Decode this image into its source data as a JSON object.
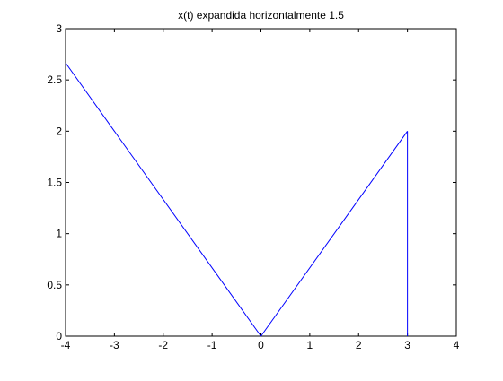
{
  "chart_data": {
    "type": "line",
    "title": "x(t) expandida horizontalmente 1.5",
    "xlabel": "",
    "ylabel": "",
    "xlim": [
      -4,
      4
    ],
    "ylim": [
      0,
      3
    ],
    "x_ticks": [
      -4,
      -3,
      -2,
      -1,
      0,
      1,
      2,
      3,
      4
    ],
    "x_tick_labels": [
      "-4",
      "-3",
      "-2",
      "-1",
      "0",
      "1",
      "2",
      "3",
      "4"
    ],
    "y_ticks": [
      0,
      0.5,
      1,
      1.5,
      2,
      2.5,
      3
    ],
    "y_tick_labels": [
      "0",
      "0.5",
      "1",
      "1.5",
      "2",
      "2.5",
      "3"
    ],
    "grid": false,
    "series": [
      {
        "x": [
          -4,
          0,
          3,
          3
        ],
        "y": [
          2.6667,
          0,
          2,
          0
        ],
        "color": "#0000ff"
      }
    ]
  }
}
